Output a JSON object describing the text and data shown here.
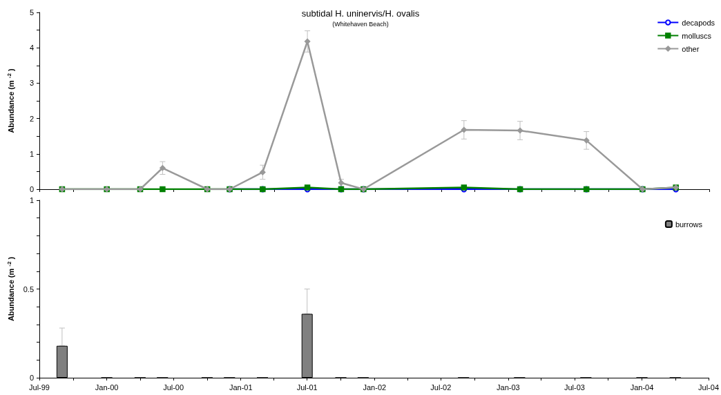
{
  "chart_data": [
    {
      "type": "line",
      "title": "subtidal H. uninervis/H. ovalis",
      "subtitle": "(Whitehaven Beach)",
      "ylabel": "Abundance (m$^{-2}$)",
      "x": [
        "1999-09",
        "2000-01",
        "2000-04",
        "2000-06",
        "2000-10",
        "2000-12",
        "2001-03",
        "2001-07",
        "2001-10",
        "2001-12",
        "2002-09",
        "2003-02",
        "2003-08",
        "2004-01",
        "2004-04"
      ],
      "series": [
        {
          "name": "decapods",
          "color": "#0000ff",
          "marker": "circle",
          "values": [
            null,
            null,
            null,
            null,
            null,
            0,
            0,
            0,
            0,
            0,
            0,
            0,
            0,
            0,
            0
          ]
        },
        {
          "name": "molluscs",
          "color": "#008000",
          "marker": "square",
          "values": [
            0,
            0,
            0,
            0,
            0,
            0,
            0,
            0.05,
            0,
            0,
            0.05,
            0,
            0,
            0,
            0.05
          ]
        },
        {
          "name": "other",
          "color": "#999999",
          "marker": "diamond",
          "values": [
            0,
            0,
            0,
            0.6,
            0,
            0,
            0.48,
            4.18,
            0.18,
            0,
            1.68,
            1.66,
            1.38,
            0,
            0.05
          ],
          "errors": [
            null,
            null,
            null,
            0.18,
            null,
            null,
            0.2,
            0.3,
            0.1,
            null,
            0.26,
            0.26,
            0.25,
            null,
            null
          ]
        }
      ],
      "xlim": [
        "1999-07",
        "2004-07"
      ],
      "xticks": [
        {
          "value": "1999-07",
          "label": null
        },
        {
          "value": "1999-10",
          "label": null
        },
        {
          "value": "2000-01",
          "label": null
        },
        {
          "value": "2000-04",
          "label": null
        },
        {
          "value": "2000-07",
          "label": null
        },
        {
          "value": "2000-10",
          "label": null
        },
        {
          "value": "2001-01",
          "label": null
        },
        {
          "value": "2001-04",
          "label": null
        },
        {
          "value": "2001-07",
          "label": null
        },
        {
          "value": "2001-10",
          "label": null
        },
        {
          "value": "2002-01",
          "label": null
        },
        {
          "value": "2002-04",
          "label": null
        },
        {
          "value": "2002-07",
          "label": null
        },
        {
          "value": "2002-10",
          "label": null
        },
        {
          "value": "2003-01",
          "label": null
        },
        {
          "value": "2003-04",
          "label": null
        },
        {
          "value": "2003-07",
          "label": null
        },
        {
          "value": "2003-10",
          "label": null
        },
        {
          "value": "2004-01",
          "label": null
        },
        {
          "value": "2004-04",
          "label": null
        },
        {
          "value": "2004-07",
          "label": null
        }
      ],
      "ylim": [
        0,
        5
      ],
      "yticks": [
        0,
        {
          "value": 0.5,
          "label": null
        },
        1,
        {
          "value": 1.5,
          "label": null
        },
        2,
        {
          "value": 2.5,
          "label": null
        },
        3,
        {
          "value": 3.5,
          "label": null
        },
        4,
        {
          "value": 4.5,
          "label": null
        },
        5
      ],
      "tick_labels": "y",
      "grid": false,
      "legend": "top right"
    },
    {
      "type": "bar",
      "ylabel": "Abundance (m$^{-2}$)",
      "x": [
        "1999-09",
        "2000-01",
        "2000-04",
        "2000-06",
        "2000-10",
        "2000-12",
        "2001-03",
        "2001-07",
        "2001-10",
        "2001-12",
        "2002-09",
        "2003-02",
        "2003-08",
        "2004-01",
        "2004-04"
      ],
      "series": [
        {
          "name": "burrows",
          "color": "#808080",
          "values": [
            0.18,
            0,
            0,
            0,
            0,
            0,
            0,
            0.36,
            0,
            0,
            0,
            0,
            0,
            0,
            0
          ],
          "errors": [
            [
              0.18,
              0.28
            ],
            null,
            null,
            null,
            null,
            null,
            null,
            [
              0.36,
              0.5
            ],
            null,
            null,
            null,
            null,
            null,
            null,
            null
          ]
        }
      ],
      "xlim": [
        "1999-07",
        "2004-07"
      ],
      "xticks": [
        {
          "value": "1999-07",
          "label": "Jul-99"
        },
        {
          "value": "1999-10",
          "label": null
        },
        {
          "value": "2000-01",
          "label": "Jan-00"
        },
        {
          "value": "2000-04",
          "label": null
        },
        {
          "value": "2000-07",
          "label": "Jul-00"
        },
        {
          "value": "2000-10",
          "label": null
        },
        {
          "value": "2001-01",
          "label": "Jan-01"
        },
        {
          "value": "2001-04",
          "label": null
        },
        {
          "value": "2001-07",
          "label": "Jul-01"
        },
        {
          "value": "2001-10",
          "label": null
        },
        {
          "value": "2002-01",
          "label": "Jan-02"
        },
        {
          "value": "2002-04",
          "label": null
        },
        {
          "value": "2002-07",
          "label": "Jul-02"
        },
        {
          "value": "2002-10",
          "label": null
        },
        {
          "value": "2003-01",
          "label": "Jan-03"
        },
        {
          "value": "2003-04",
          "label": null
        },
        {
          "value": "2003-07",
          "label": "Jul-03"
        },
        {
          "value": "2003-10",
          "label": null
        },
        {
          "value": "2004-01",
          "label": "Jan-04"
        },
        {
          "value": "2004-04",
          "label": null
        },
        {
          "value": "2004-07",
          "label": "Jul-04"
        }
      ],
      "ylim": [
        0,
        1
      ],
      "yticks": [
        0,
        {
          "value": 0.1,
          "label": null
        },
        {
          "value": 0.2,
          "label": null
        },
        {
          "value": 0.3,
          "label": null
        },
        {
          "value": 0.4,
          "label": null
        },
        0.5,
        {
          "value": 0.6,
          "label": null
        },
        {
          "value": 0.7,
          "label": null
        },
        {
          "value": 0.8,
          "label": null
        },
        {
          "value": 0.9,
          "label": null
        },
        1
      ],
      "grid": false,
      "legend": "top right"
    }
  ]
}
